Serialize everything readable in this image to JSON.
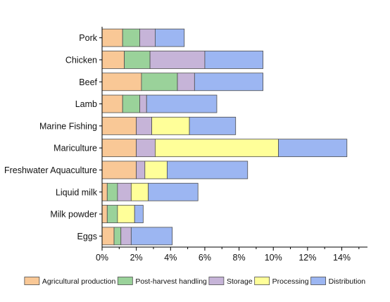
{
  "chart_data": {
    "type": "bar",
    "orientation": "horizontal",
    "stacked": true,
    "title": "",
    "xlabel": "",
    "ylabel": "",
    "xlim": [
      0,
      15.5
    ],
    "x_ticks": [
      0,
      2,
      4,
      6,
      8,
      10,
      12,
      14
    ],
    "x_tick_labels": [
      "0%",
      "2%",
      "4%",
      "6%",
      "8%",
      "10%",
      "12%",
      "14%"
    ],
    "grid": false,
    "legend_position": "bottom",
    "categories": [
      "Pork",
      "Chicken",
      "Beef",
      "Lamb",
      "Marine Fishing",
      "Mariculture",
      "Freshwater Aquaculture",
      "Liquid milk",
      "Milk powder",
      "Eggs"
    ],
    "series": [
      {
        "name": "Agricultural production",
        "color": "#f9c896",
        "values": [
          1.2,
          1.3,
          2.3,
          1.2,
          2.0,
          2.0,
          2.0,
          0.3,
          0.3,
          0.7
        ]
      },
      {
        "name": "Post-harvest handling",
        "color": "#9ad29a",
        "values": [
          1.0,
          1.5,
          2.1,
          1.0,
          0.0,
          0.0,
          0.0,
          0.6,
          0.6,
          0.4
        ]
      },
      {
        "name": "Storage",
        "color": "#c6b4d8",
        "values": [
          0.9,
          3.2,
          1.0,
          0.4,
          0.9,
          1.1,
          0.5,
          0.8,
          0.0,
          0.6
        ]
      },
      {
        "name": "Processing",
        "color": "#ffff99",
        "values": [
          0.0,
          0.0,
          0.0,
          0.0,
          2.2,
          7.2,
          1.3,
          1.0,
          1.0,
          0.0
        ]
      },
      {
        "name": "Distribution",
        "color": "#9cb6f2",
        "values": [
          1.7,
          3.4,
          4.0,
          4.1,
          2.7,
          4.0,
          4.7,
          2.9,
          0.5,
          2.4
        ]
      }
    ]
  }
}
